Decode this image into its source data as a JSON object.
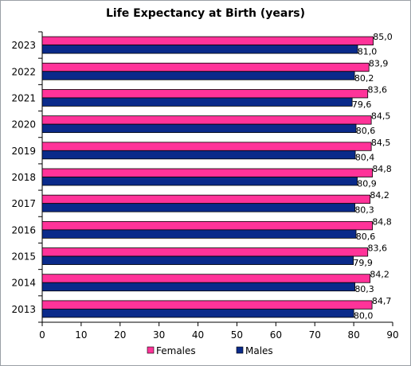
{
  "chart_data": {
    "type": "bar",
    "orientation": "horizontal",
    "title": "Life Expectancy at Birth (years)",
    "xlabel": "",
    "ylabel": "",
    "xlim": [
      0,
      90
    ],
    "x_ticks": [
      0,
      10,
      20,
      30,
      40,
      50,
      60,
      70,
      80,
      90
    ],
    "grid": false,
    "legend_position": "bottom",
    "categories": [
      "2023",
      "2022",
      "2021",
      "2020",
      "2019",
      "2018",
      "2017",
      "2016",
      "2015",
      "2014",
      "2013"
    ],
    "series": [
      {
        "name": "Females",
        "color": "#ff3399",
        "values": [
          85.0,
          83.9,
          83.6,
          84.5,
          84.5,
          84.8,
          84.2,
          84.8,
          83.6,
          84.2,
          84.7
        ],
        "labels": [
          "85,0",
          "83,9",
          "83,6",
          "84,5",
          "84,5",
          "84,8",
          "84,2",
          "84,8",
          "83,6",
          "84,2",
          "84,7"
        ]
      },
      {
        "name": "Males",
        "color": "#0a2a8a",
        "values": [
          81.0,
          80.2,
          79.6,
          80.6,
          80.4,
          80.9,
          80.3,
          80.6,
          79.9,
          80.3,
          80.0
        ],
        "labels": [
          "81,0",
          "80,2",
          "79,6",
          "80,6",
          "80,4",
          "80,9",
          "80,3",
          "80,6",
          "79,9",
          "80,3",
          "80,0"
        ]
      }
    ]
  }
}
